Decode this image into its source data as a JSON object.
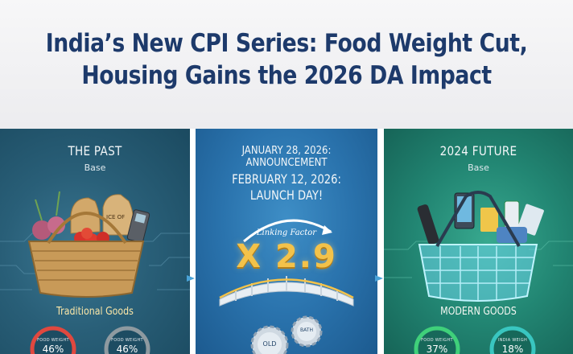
{
  "header": {
    "title": "India’s New CPI Series: Food Weight Cut,\nHousing Gains the 2026 DA Impact"
  },
  "panels": {
    "past": {
      "title": "THE PAST",
      "subtitle": "Base",
      "caption": "Traditional Goods",
      "basket_tag": "ICE OF",
      "rings": [
        {
          "label": "FOOD WEIGHT",
          "value": "46%"
        },
        {
          "label": "FOOD WEIGHT",
          "value": "46%"
        }
      ]
    },
    "middle": {
      "announcement": "JANUARY 28, 2026:\nANNOUNCEMENT",
      "launch": "FEBRUARY 12, 2026:\nLAUNCH DAY!",
      "linking_label": "Linking Factor",
      "multiplier": "X 2.9",
      "gear_old": "OLD",
      "gear_new": "BATH"
    },
    "future": {
      "title": "2024 FUTURE",
      "subtitle": "Base",
      "caption": "MODERN GOODS",
      "rings": [
        {
          "label": "FOOD WEIGHT",
          "value": "37%"
        },
        {
          "label": "INDIA WEIGH",
          "value": "18%"
        }
      ]
    }
  },
  "colors": {
    "title": "#1d3a6b",
    "past_panel": "#295f78",
    "middle_panel": "#2a73ad",
    "future_panel": "#228673",
    "ring_red": "#e0483f",
    "ring_grey": "#8e9aa0",
    "ring_green": "#3fd07a",
    "ring_teal": "#39c6c0",
    "multiplier": "#f3c24a"
  },
  "icons": [
    "vegetable-basket-icon",
    "phone-icon",
    "bridge-icon",
    "gear-icon",
    "electronics-basket-icon",
    "arrow-right-icon"
  ]
}
